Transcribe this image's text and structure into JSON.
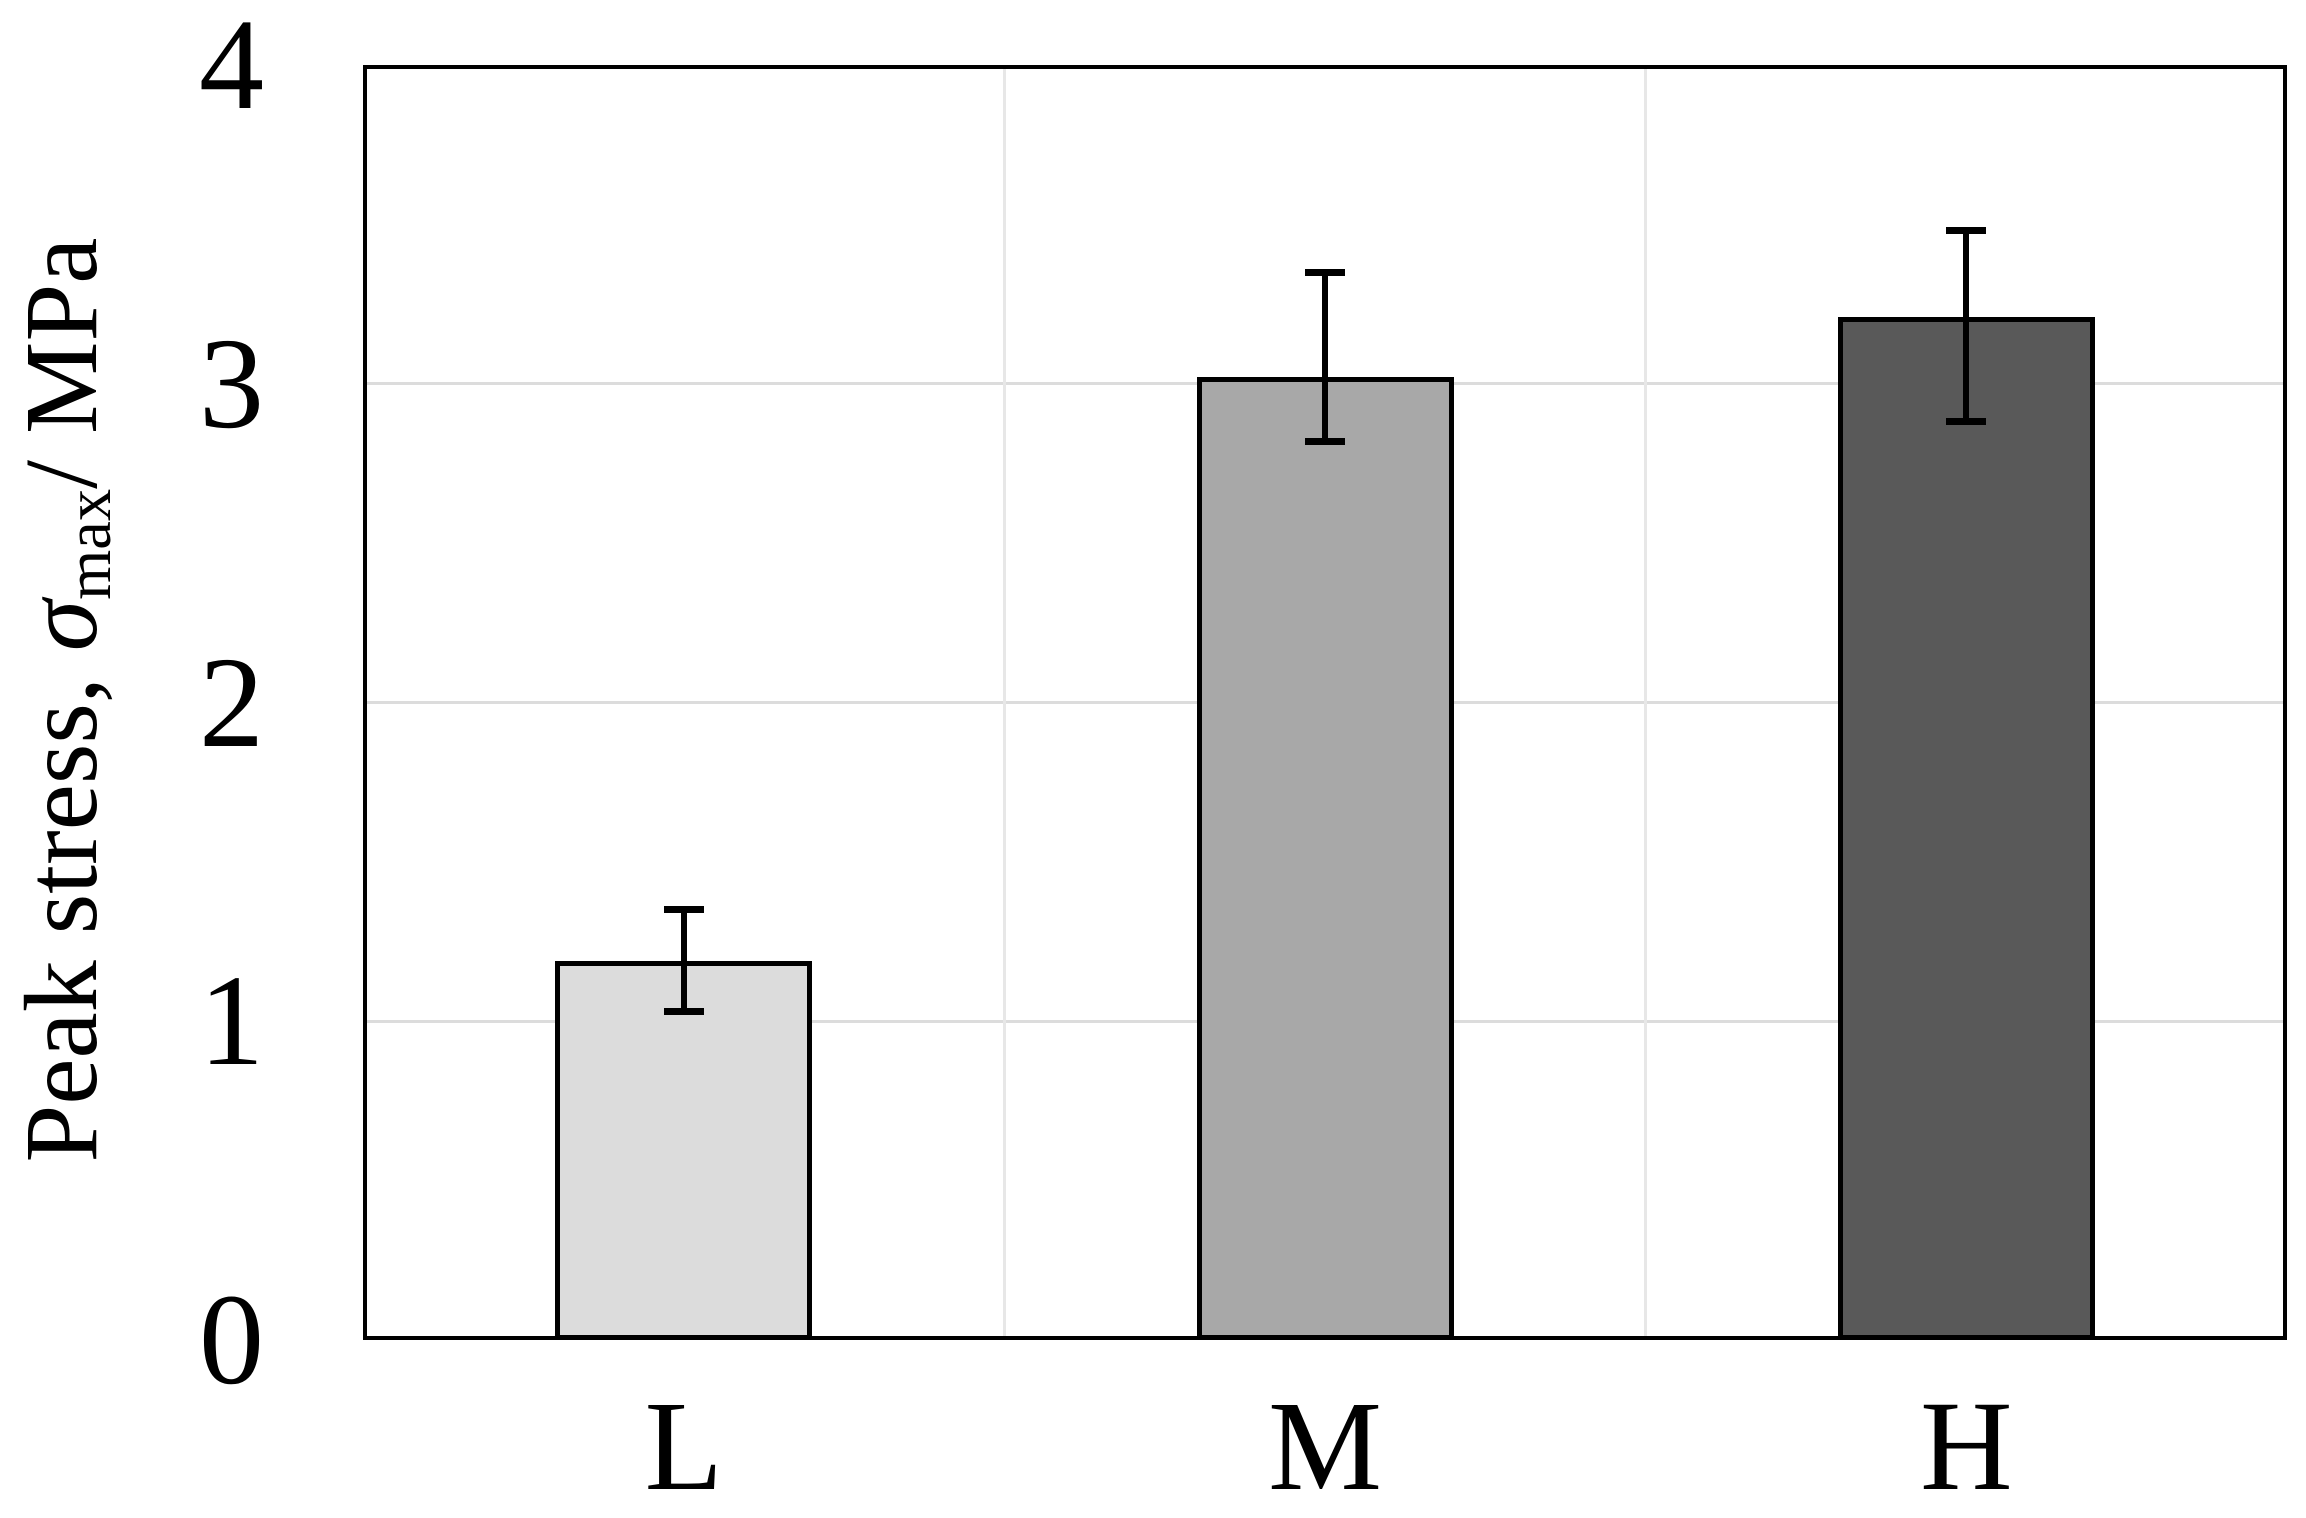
{
  "figure": {
    "background": "#ffffff",
    "axis_color": "#000000",
    "hgrid_color": "#dcdcdc",
    "vgrid_color": "#e7e7e7"
  },
  "chart_data": {
    "type": "bar",
    "title": "",
    "categories": [
      "L",
      "M",
      "H"
    ],
    "series": [
      {
        "name": "Peak stress",
        "values": [
          1.19,
          3.02,
          3.21
        ],
        "error_upper": [
          1.35,
          3.35,
          3.48
        ],
        "error_lower": [
          1.03,
          2.82,
          2.88
        ]
      }
    ],
    "bar_colors": [
      "#dcdcdc",
      "#a8a8a8",
      "#595959"
    ],
    "bar_border_color": "#000000",
    "error_bar_color": "#000000",
    "xlabel": "",
    "ylabel": "Peak stress, σmax/ MPa",
    "ylabel_parts": {
      "prefix": "Peak stress, ",
      "symbol": "σ",
      "subscript": "max",
      "suffix": "/ MPa"
    },
    "ylim": [
      0,
      4
    ],
    "yticks": [
      "0",
      "1",
      "2",
      "3",
      "4"
    ],
    "grid": {
      "horizontal_at": [
        1,
        2,
        3
      ],
      "vertical_at_category_boundaries": [
        1,
        2
      ]
    },
    "legend": "none",
    "error_bars": true
  }
}
